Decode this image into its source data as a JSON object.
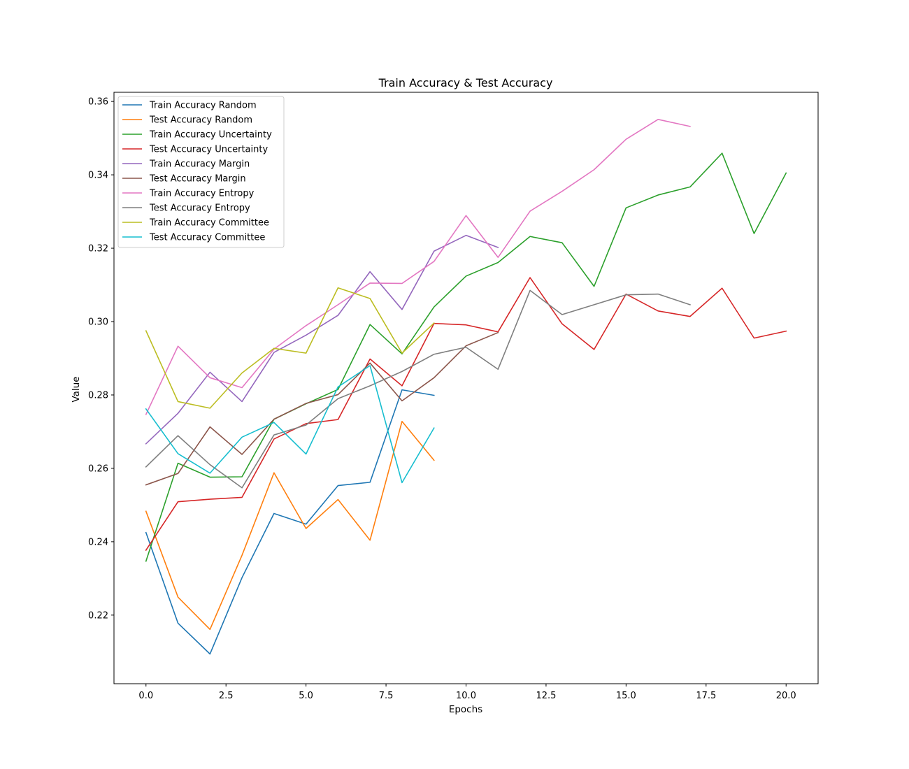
{
  "chart_data": {
    "type": "line",
    "title": "Train Accuracy & Test Accuracy",
    "xlabel": "Epochs",
    "ylabel": "Value",
    "xlim": [
      -1.0,
      21.0
    ],
    "ylim": [
      0.2013,
      0.3625
    ],
    "xticks": [
      0.0,
      2.5,
      5.0,
      7.5,
      10.0,
      12.5,
      15.0,
      17.5,
      20.0
    ],
    "xtick_labels": [
      "0.0",
      "2.5",
      "5.0",
      "7.5",
      "10.0",
      "12.5",
      "15.0",
      "17.5",
      "20.0"
    ],
    "yticks": [
      0.22,
      0.24,
      0.26,
      0.28,
      0.3,
      0.32,
      0.34,
      0.36
    ],
    "ytick_labels": [
      "0.22",
      "0.24",
      "0.26",
      "0.28",
      "0.30",
      "0.32",
      "0.34",
      "0.36"
    ],
    "grid": false,
    "legend_position": "top-left",
    "series": [
      {
        "name": "Train Accuracy Random",
        "color": "#1f77b4",
        "x": [
          0,
          1,
          2,
          3,
          4,
          5,
          6,
          7,
          8,
          9
        ],
        "values": [
          0.2425,
          0.2178,
          0.2094,
          0.2302,
          0.2477,
          0.2448,
          0.2553,
          0.2562,
          0.2814,
          0.2799
        ]
      },
      {
        "name": "Test Accuracy Random",
        "color": "#ff7f0e",
        "x": [
          0,
          1,
          2,
          3,
          4,
          5,
          6,
          7,
          8,
          9
        ],
        "values": [
          0.2483,
          0.2249,
          0.2161,
          0.2363,
          0.2588,
          0.2436,
          0.2515,
          0.2404,
          0.2728,
          0.2622
        ]
      },
      {
        "name": "Train Accuracy Uncertainty",
        "color": "#2ca02c",
        "x": [
          0,
          1,
          2,
          3,
          4,
          5,
          6,
          7,
          8,
          9,
          10,
          11,
          12,
          13,
          14,
          15,
          16,
          17,
          18,
          19,
          20
        ],
        "values": [
          0.2347,
          0.2614,
          0.2576,
          0.2577,
          0.2734,
          0.2776,
          0.2815,
          0.2992,
          0.2912,
          0.304,
          0.3124,
          0.3161,
          0.3232,
          0.3215,
          0.3096,
          0.331,
          0.3345,
          0.3367,
          0.3459,
          0.324,
          0.3405
        ]
      },
      {
        "name": "Test Accuracy Uncertainty",
        "color": "#d62728",
        "x": [
          0,
          1,
          2,
          3,
          4,
          5,
          6,
          7,
          8,
          9,
          10,
          11,
          12,
          13,
          14,
          15,
          16,
          17,
          18,
          19,
          20
        ],
        "values": [
          0.2377,
          0.2509,
          0.2516,
          0.2521,
          0.268,
          0.2722,
          0.2733,
          0.2898,
          0.2825,
          0.2995,
          0.2991,
          0.2972,
          0.312,
          0.2994,
          0.2924,
          0.3075,
          0.3029,
          0.3014,
          0.3091,
          0.2955,
          0.2974
        ]
      },
      {
        "name": "Train Accuracy Margin",
        "color": "#9467bd",
        "x": [
          0,
          1,
          2,
          3,
          4,
          5,
          6,
          7,
          8,
          9,
          10,
          11
        ],
        "values": [
          0.2667,
          0.275,
          0.2862,
          0.2782,
          0.2916,
          0.2963,
          0.3017,
          0.3136,
          0.3033,
          0.3192,
          0.3235,
          0.3202
        ]
      },
      {
        "name": "Test Accuracy Margin",
        "color": "#8c564b",
        "x": [
          0,
          1,
          2,
          3,
          4,
          5,
          6,
          7,
          8,
          9,
          10,
          11
        ],
        "values": [
          0.2555,
          0.2586,
          0.2713,
          0.2638,
          0.2734,
          0.2777,
          0.2801,
          0.2887,
          0.2784,
          0.2847,
          0.2934,
          0.297
        ]
      },
      {
        "name": "Train Accuracy Entropy",
        "color": "#e377c2",
        "x": [
          0,
          1,
          2,
          3,
          4,
          5,
          6,
          7,
          8,
          9,
          10,
          11,
          12,
          13,
          14,
          15,
          16,
          17
        ],
        "values": [
          0.2747,
          0.2933,
          0.2847,
          0.282,
          0.2925,
          0.2989,
          0.3046,
          0.3105,
          0.3104,
          0.3164,
          0.3289,
          0.3175,
          0.3301,
          0.3355,
          0.3414,
          0.3497,
          0.3551,
          0.3532
        ]
      },
      {
        "name": "Test Accuracy Entropy",
        "color": "#7f7f7f",
        "x": [
          0,
          1,
          2,
          3,
          4,
          5,
          6,
          7,
          8,
          9,
          10,
          11,
          12,
          13,
          14,
          15,
          16,
          17
        ],
        "values": [
          0.2604,
          0.2689,
          0.261,
          0.2547,
          0.2691,
          0.2718,
          0.279,
          0.2825,
          0.2864,
          0.2911,
          0.293,
          0.287,
          0.3085,
          0.3019,
          0.3046,
          0.3073,
          0.3075,
          0.3046
        ]
      },
      {
        "name": "Train Accuracy Committee",
        "color": "#bcbd22",
        "x": [
          0,
          1,
          2,
          3,
          4,
          5,
          6,
          7,
          8,
          9
        ],
        "values": [
          0.2975,
          0.2782,
          0.2764,
          0.286,
          0.2927,
          0.2914,
          0.3092,
          0.3063,
          0.2914,
          0.2996
        ]
      },
      {
        "name": "Test Accuracy Committee",
        "color": "#17becf",
        "x": [
          0,
          1,
          2,
          3,
          4,
          5,
          6,
          7,
          8,
          9
        ],
        "values": [
          0.2762,
          0.264,
          0.2587,
          0.2685,
          0.2725,
          0.2639,
          0.2822,
          0.288,
          0.2561,
          0.271
        ]
      }
    ]
  }
}
